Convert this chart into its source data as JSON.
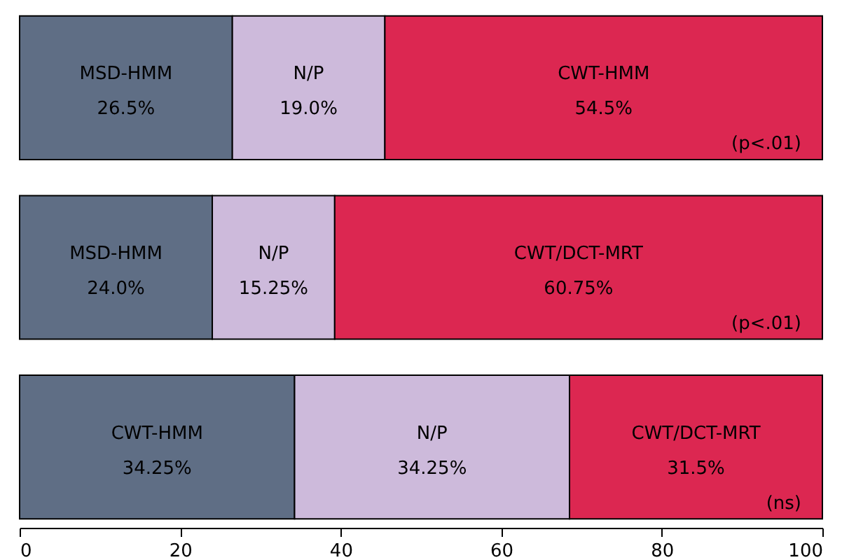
{
  "chart_data": {
    "type": "bar",
    "orientation": "horizontal",
    "stacked": true,
    "categories": [
      null,
      null,
      null
    ],
    "series": [
      {
        "color": "#5f6e85",
        "values": [
          26.5,
          24.0,
          34.25
        ],
        "value_labels": [
          "MSD-HMM\n26.5%",
          "MSD-HMM\n24.0%",
          "CWT-HMM\n34.25%"
        ]
      },
      {
        "color": "#cdbadb",
        "values": [
          19.0,
          15.25,
          34.25
        ],
        "value_labels": [
          "N/P\n19.0%",
          "N/P\n15.25%",
          "N/P\n34.25%"
        ]
      },
      {
        "color": "#dc2751",
        "values": [
          54.5,
          60.75,
          31.5
        ],
        "value_labels": [
          "CWT-HMM\n54.5%",
          "CWT/DCT-MRT\n60.75%",
          "CWT/DCT-MRT\n31.5%"
        ]
      }
    ],
    "annotations": [
      "(p<.01)",
      "(p<.01)",
      "(ns)"
    ],
    "xlim": [
      0,
      100
    ],
    "xticks": [
      0,
      20,
      40,
      60,
      80,
      100
    ],
    "grid": false
  }
}
